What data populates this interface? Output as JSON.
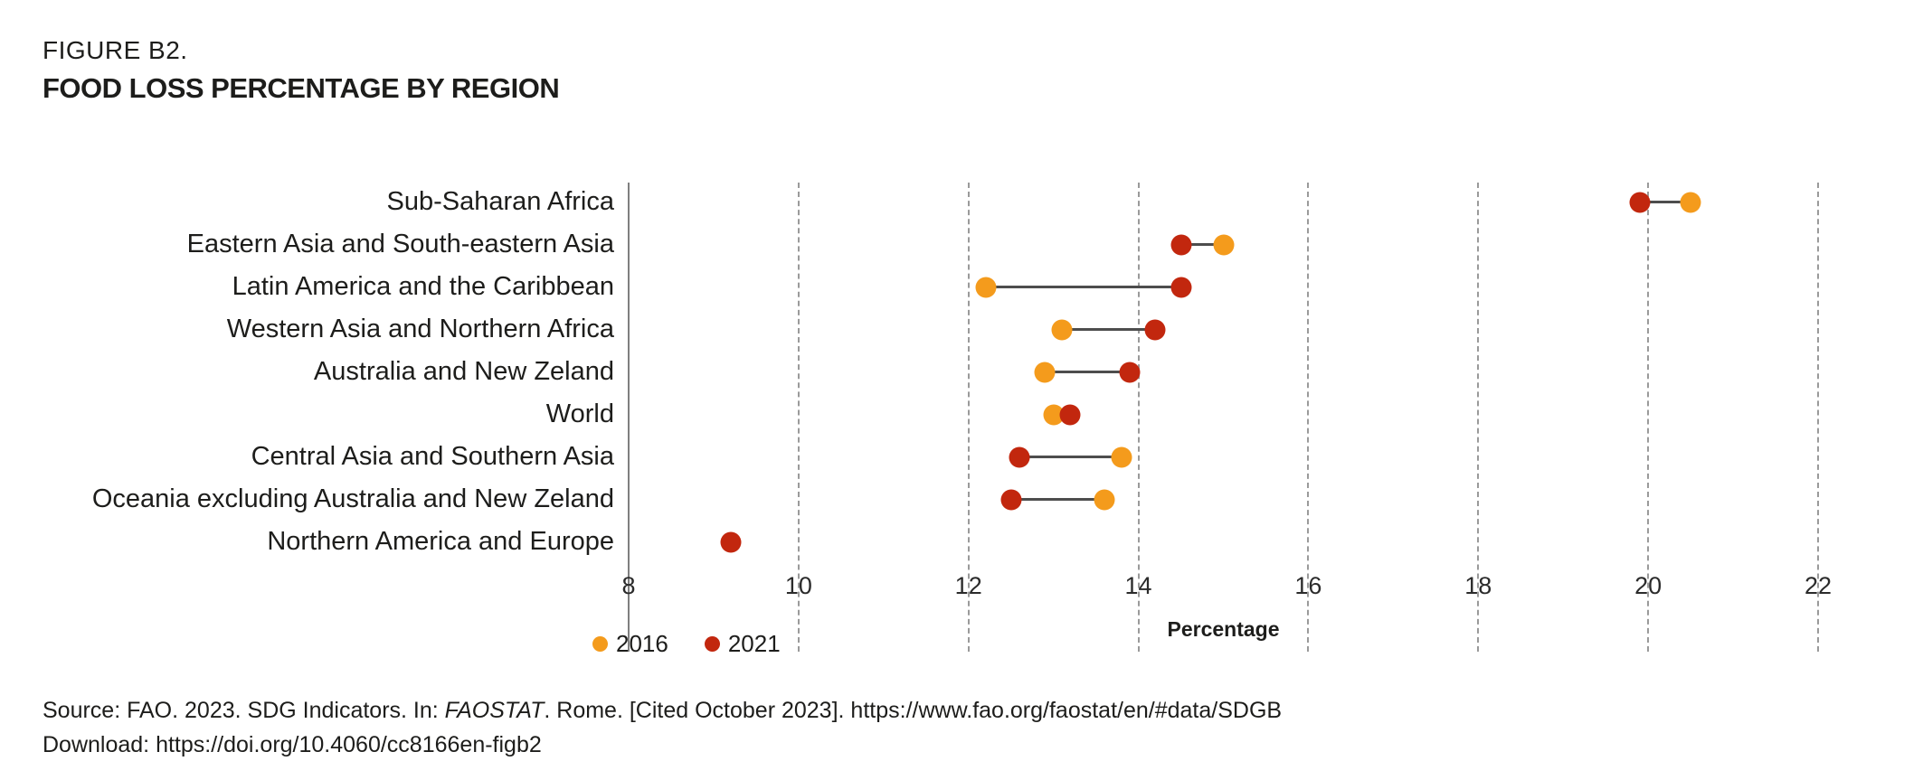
{
  "figure": {
    "label": "FIGURE B2.",
    "title": "FOOD LOSS PERCENTAGE BY REGION"
  },
  "chart_data": {
    "type": "dumbbell",
    "title": "FOOD LOSS PERCENTAGE BY REGION",
    "xlabel": "Percentage",
    "xlim": [
      8,
      22
    ],
    "xticks": [
      8,
      10,
      12,
      14,
      16,
      18,
      20,
      22
    ],
    "grid": "vertical-dashed",
    "legend_position": "bottom-left",
    "categories": [
      "Sub-Saharan Africa",
      "Eastern Asia and South-eastern Asia",
      "Latin America and the Caribbean",
      "Western Asia and Northern Africa",
      "Australia and New Zeland",
      "World",
      "Central Asia and Southern Asia",
      "Oceania excluding Australia and New Zeland",
      "Northern America and Europe"
    ],
    "series": [
      {
        "name": "2016",
        "color": "#F49B1C",
        "values": [
          20.5,
          15.0,
          12.2,
          13.1,
          12.9,
          13.0,
          13.8,
          13.6,
          null
        ]
      },
      {
        "name": "2021",
        "color": "#C2270E",
        "values": [
          19.9,
          14.5,
          14.5,
          14.2,
          13.9,
          13.2,
          12.6,
          12.5,
          9.2
        ]
      }
    ]
  },
  "legend": {
    "items": [
      {
        "label": "2016",
        "color": "#F49B1C"
      },
      {
        "label": "2021",
        "color": "#C2270E"
      }
    ]
  },
  "source": {
    "line1_prefix": "Source: FAO. 2023. SDG Indicators. In: ",
    "line1_italic": "FAOSTAT",
    "line1_suffix": ". Rome. [Cited October 2023]. https://www.fao.org/faostat/en/#data/SDGB",
    "line2": "Download: https://doi.org/10.4060/cc8166en-figb2"
  },
  "colors": {
    "dot_2016": "#F49B1C",
    "dot_2021": "#C2270E",
    "connector": "#4D4D4D",
    "gridline": "#9A9A9A",
    "axis_line": "#7F7F7F",
    "text": "#1D1D1B"
  }
}
